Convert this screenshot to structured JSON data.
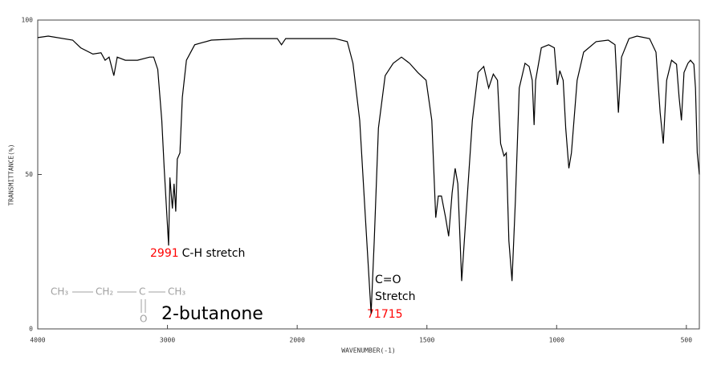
{
  "chart_data": {
    "type": "line",
    "x_label": "WAVENUMBER(-1)",
    "y_label": "TRANSMITTANCE(%)",
    "xlim": [
      4000,
      450
    ],
    "xticks": [
      4000,
      3000,
      2000,
      1500,
      1000,
      500
    ],
    "ylim": [
      0,
      100
    ],
    "yticks": [
      0,
      50,
      100
    ],
    "series": [
      {
        "color": "#000000",
        "x": [
          4000,
          3919,
          3731,
          3669,
          3575,
          3512,
          3481,
          3450,
          3413,
          3387,
          3325,
          3231,
          3137,
          3106,
          3075,
          3044,
          3025,
          2991,
          2981,
          2962,
          2949,
          2936,
          2924,
          2904,
          2885,
          2854,
          2790,
          2662,
          2408,
          2153,
          2121,
          2089,
          1949,
          1854,
          1807,
          1785,
          1759,
          1737,
          1715,
          1703,
          1687,
          1661,
          1630,
          1598,
          1567,
          1535,
          1503,
          1481,
          1466,
          1456,
          1444,
          1428,
          1416,
          1403,
          1391,
          1381,
          1366,
          1350,
          1325,
          1303,
          1281,
          1262,
          1244,
          1228,
          1216,
          1203,
          1194,
          1184,
          1172,
          1159,
          1144,
          1122,
          1106,
          1094,
          1087,
          1081,
          1059,
          1031,
          1009,
          997,
          988,
          975,
          965,
          953,
          943,
          921,
          896,
          848,
          801,
          775,
          762,
          750,
          721,
          690,
          642,
          617,
          601,
          589,
          576,
          557,
          538,
          528,
          519,
          509,
          494,
          484,
          471,
          465,
          458,
          450
        ],
        "values": [
          94.3,
          94.8,
          93.5,
          91,
          89,
          89.4,
          87,
          88,
          82,
          88,
          87,
          87,
          88,
          88,
          84,
          67.5,
          52,
          27,
          49,
          39,
          47,
          38,
          55,
          57,
          75,
          87,
          92,
          93.5,
          94,
          94,
          92,
          94,
          94,
          94,
          93,
          86,
          67.5,
          36,
          5,
          28.5,
          65,
          82,
          86,
          88,
          86,
          83,
          80.5,
          67.5,
          36,
          43,
          43,
          36,
          30,
          44,
          52,
          47,
          15.5,
          36,
          67.5,
          83,
          85,
          78,
          82.5,
          80.5,
          60,
          56,
          57,
          28.5,
          15.5,
          41.5,
          78,
          86,
          85,
          80.5,
          66,
          80.5,
          91,
          92,
          91,
          79,
          83.6,
          80.5,
          65,
          52,
          57,
          80.5,
          89.6,
          93,
          93.5,
          92,
          70,
          88,
          94,
          94.8,
          94,
          89.6,
          70,
          60,
          80.5,
          87,
          85.7,
          75,
          67.5,
          83,
          86,
          87,
          85.7,
          78,
          57,
          50
        ]
      }
    ],
    "annotations": [
      {
        "text": "2991",
        "color": "#ff0000"
      },
      {
        "text": "C-H stretch",
        "color": "#000000"
      },
      {
        "text": "C=O",
        "color": "#000000"
      },
      {
        "text": "Stretch",
        "color": "#000000"
      },
      {
        "text": "71715",
        "color": "#ff0000"
      },
      {
        "text": "2-butanone",
        "color": "#000000"
      }
    ],
    "structure": {
      "groups": [
        "CH₃",
        "CH₂",
        "C",
        "CH₃"
      ],
      "oxygen": "O",
      "color": "#a0a0a0"
    }
  }
}
